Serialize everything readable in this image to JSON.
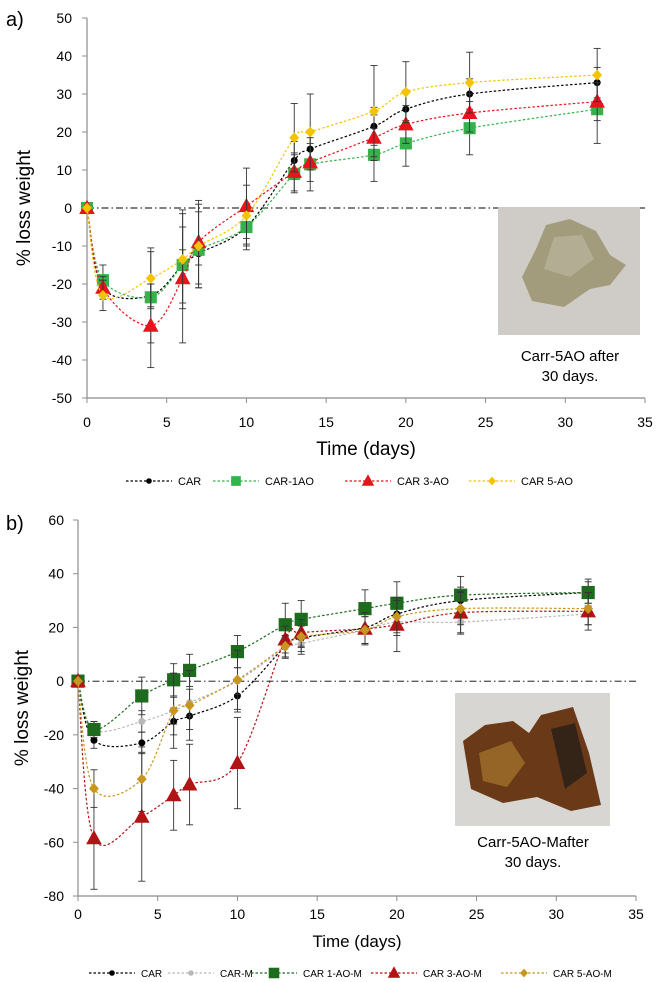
{
  "colors": {
    "CAR": "#000000",
    "CAR-1AO": "#33b34a",
    "CAR 3-AO": "#e8141c",
    "CAR 5-AO": "#f5c400",
    "CAR-M": "#b8b8b8",
    "CAR 1-AO-M": "#1e6b1e",
    "CAR 3-AO-M": "#b01414",
    "CAR 5-AO-M": "#c8961e"
  },
  "chart_data": [
    {
      "type": "line",
      "panel_label": "a)",
      "xlabel": "Time (days)",
      "ylabel": "% loss weight",
      "xlim": [
        0,
        35
      ],
      "ylim": [
        -50,
        50
      ],
      "x_ticks": [
        "0",
        "5",
        "10",
        "15",
        "20",
        "25",
        "30",
        "35"
      ],
      "y_ticks": [
        "50",
        "40",
        "30",
        "20",
        "10",
        "0",
        "-10",
        "-20",
        "-30",
        "-40",
        "-50"
      ],
      "legend_position": "bottom",
      "inset_caption": [
        "Carr-5AO after",
        "30 days."
      ],
      "series": [
        {
          "name": "CAR",
          "marker": "circle",
          "x": [
            0,
            1,
            4,
            6,
            7,
            10,
            13,
            14,
            18,
            20,
            24,
            32
          ],
          "y": [
            0,
            -21,
            -23,
            -15,
            -12,
            -5,
            12.5,
            15.5,
            21.5,
            26,
            30,
            33
          ],
          "err": [
            0,
            2,
            3,
            4,
            3,
            3,
            5,
            5,
            5,
            5,
            4,
            4
          ]
        },
        {
          "name": "CAR-1AO",
          "marker": "square",
          "x": [
            0,
            1,
            4,
            6,
            7,
            10,
            13,
            14,
            18,
            20,
            24,
            32
          ],
          "y": [
            0,
            -19,
            -23.5,
            -15,
            -11,
            -5,
            9,
            11.5,
            14,
            17,
            21,
            26
          ],
          "err": [
            0,
            4,
            12,
            10,
            10,
            6,
            5,
            7,
            7,
            6,
            7,
            9
          ]
        },
        {
          "name": "CAR 3-AO",
          "marker": "triangle",
          "x": [
            0,
            1,
            4,
            6,
            7,
            10,
            13,
            14,
            18,
            20,
            24,
            32
          ],
          "y": [
            0,
            -21,
            -31,
            -18.5,
            -9,
            0.5,
            9.5,
            12,
            18.5,
            22,
            25,
            28
          ],
          "err": [
            0,
            3,
            11,
            17,
            11,
            10,
            5,
            5,
            6,
            5,
            5,
            5
          ]
        },
        {
          "name": "CAR 5-AO",
          "marker": "diamond",
          "x": [
            0,
            1,
            4,
            6,
            7,
            10,
            13,
            14,
            18,
            20,
            24,
            32
          ],
          "y": [
            0,
            -23,
            -18.5,
            -13.5,
            -10,
            -2,
            18.5,
            20,
            25.5,
            30.5,
            33,
            35
          ],
          "err": [
            0,
            4,
            8,
            13,
            11,
            8,
            9,
            10,
            12,
            8,
            8,
            7
          ]
        }
      ]
    },
    {
      "type": "line",
      "panel_label": "b)",
      "xlabel": "Time (days)",
      "ylabel": "% loss weight",
      "xlim": [
        0,
        35
      ],
      "ylim": [
        -80,
        60
      ],
      "x_ticks": [
        "0",
        "5",
        "10",
        "15",
        "20",
        "25",
        "30",
        "35"
      ],
      "y_ticks": [
        "60",
        "40",
        "20",
        "0",
        "-20",
        "-40",
        "-60",
        "-80"
      ],
      "legend_position": "bottom",
      "inset_caption": [
        "Carr-5AO-Mafter",
        "30 days."
      ],
      "series": [
        {
          "name": "CAR",
          "marker": "circle",
          "x": [
            0,
            1,
            4,
            6,
            7,
            10,
            13,
            14,
            18,
            20,
            24,
            32
          ],
          "y": [
            0,
            -22,
            -23,
            -15,
            -13,
            -5.5,
            13,
            16,
            20,
            25,
            30,
            33
          ],
          "err": [
            0,
            3,
            4,
            5,
            5,
            6,
            4,
            5,
            6,
            6,
            5,
            4
          ]
        },
        {
          "name": "CAR-M",
          "marker": "circle",
          "x": [
            0,
            1,
            4,
            6,
            7,
            10,
            13,
            14,
            18,
            20,
            24,
            32
          ],
          "y": [
            0,
            -18,
            -15,
            -11,
            -8,
            0,
            12.5,
            14,
            19,
            22,
            22,
            25
          ],
          "err": [
            0,
            3,
            4,
            5,
            5,
            5,
            4,
            4,
            5,
            5,
            4,
            4
          ]
        },
        {
          "name": "CAR 1-AO-M",
          "marker": "square",
          "x": [
            0,
            1,
            4,
            6,
            7,
            10,
            13,
            14,
            18,
            20,
            24,
            32
          ],
          "y": [
            0,
            -18,
            -5.5,
            0.5,
            4,
            11,
            21,
            23,
            27,
            29,
            32,
            33
          ],
          "err": [
            0,
            3,
            7,
            6,
            6,
            6,
            8,
            7,
            7,
            8,
            7,
            5
          ]
        },
        {
          "name": "CAR 3-AO-M",
          "marker": "triangle",
          "x": [
            0,
            1,
            4,
            6,
            7,
            10,
            13,
            14,
            18,
            20,
            24,
            32
          ],
          "y": [
            0,
            -58.5,
            -50.5,
            -42.5,
            -38.5,
            -30.5,
            15.5,
            18,
            19.5,
            21,
            25.5,
            26
          ],
          "err": [
            0,
            19,
            24,
            13,
            15,
            17,
            5,
            5,
            6,
            10,
            8,
            7
          ]
        },
        {
          "name": "CAR 5-AO-M",
          "marker": "diamond",
          "x": [
            0,
            1,
            4,
            6,
            7,
            10,
            13,
            14,
            18,
            20,
            24,
            32
          ],
          "y": [
            0,
            -40,
            -36.5,
            -11,
            -9,
            0.5,
            13,
            16.5,
            19,
            24,
            27,
            27
          ],
          "err": [
            0,
            7,
            12,
            14,
            13,
            11,
            4,
            4,
            5,
            6,
            6,
            6
          ]
        }
      ]
    }
  ]
}
